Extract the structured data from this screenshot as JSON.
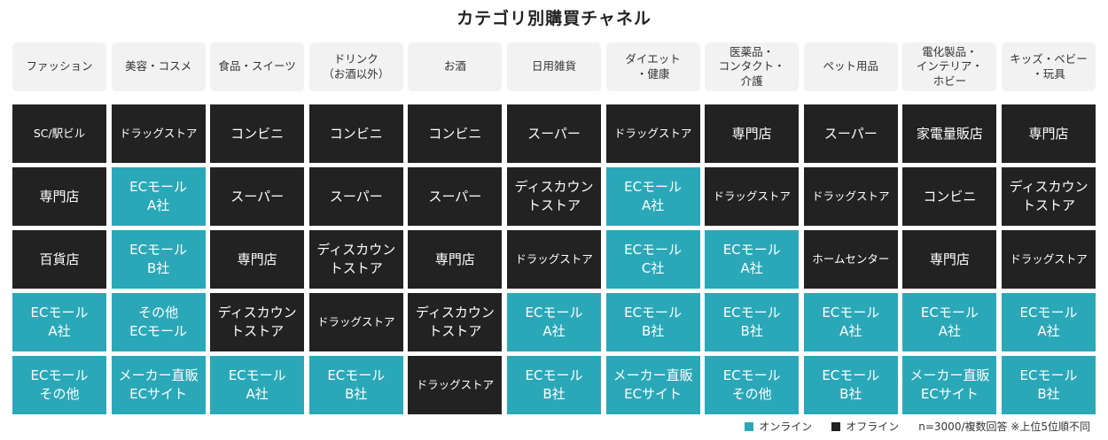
{
  "title": "カテゴリ別購買チャネル",
  "colors": {
    "online": "#2ba8b8",
    "offline": "#222222",
    "header_bg": "#f2f2f2"
  },
  "categories": [
    {
      "label": "ファッション",
      "cells": [
        {
          "text": "SC/駅ビル",
          "type": "offline"
        },
        {
          "text": "専門店",
          "type": "offline"
        },
        {
          "text": "百貨店",
          "type": "offline"
        },
        {
          "text": "ECモール\nA社",
          "type": "online"
        },
        {
          "text": "ECモール\nその他",
          "type": "online"
        }
      ]
    },
    {
      "label": "美容・コスメ",
      "cells": [
        {
          "text": "ドラッグストア",
          "type": "offline"
        },
        {
          "text": "ECモール\nA社",
          "type": "online"
        },
        {
          "text": "ECモール\nB社",
          "type": "online"
        },
        {
          "text": "その他\nECモール",
          "type": "online"
        },
        {
          "text": "メーカー直販\nECサイト",
          "type": "online"
        }
      ]
    },
    {
      "label": "食品・スイーツ",
      "cells": [
        {
          "text": "コンビニ",
          "type": "offline"
        },
        {
          "text": "スーパー",
          "type": "offline"
        },
        {
          "text": "専門店",
          "type": "offline"
        },
        {
          "text": "ディスカウン\nトストア",
          "type": "offline"
        },
        {
          "text": "ECモール\nA社",
          "type": "online"
        }
      ]
    },
    {
      "label": "ドリンク\n（お酒以外）",
      "cells": [
        {
          "text": "コンビニ",
          "type": "offline"
        },
        {
          "text": "スーパー",
          "type": "offline"
        },
        {
          "text": "ディスカウン\nトストア",
          "type": "offline"
        },
        {
          "text": "ドラッグストア",
          "type": "offline"
        },
        {
          "text": "ECモール\nB社",
          "type": "online"
        }
      ]
    },
    {
      "label": "お酒",
      "cells": [
        {
          "text": "コンビニ",
          "type": "offline"
        },
        {
          "text": "スーパー",
          "type": "offline"
        },
        {
          "text": "専門店",
          "type": "offline"
        },
        {
          "text": "ディスカウン\nトストア",
          "type": "offline"
        },
        {
          "text": "ドラッグストア",
          "type": "offline"
        }
      ]
    },
    {
      "label": "日用雑貨",
      "cells": [
        {
          "text": "スーパー",
          "type": "offline"
        },
        {
          "text": "ディスカウン\nトストア",
          "type": "offline"
        },
        {
          "text": "ドラッグストア",
          "type": "offline"
        },
        {
          "text": "ECモール\nA社",
          "type": "online"
        },
        {
          "text": "ECモール\nB社",
          "type": "online"
        }
      ]
    },
    {
      "label": "ダイエット\n・健康",
      "cells": [
        {
          "text": "ドラッグストア",
          "type": "offline"
        },
        {
          "text": "ECモール\nA社",
          "type": "online"
        },
        {
          "text": "ECモール\nC社",
          "type": "online"
        },
        {
          "text": "ECモール\nB社",
          "type": "online"
        },
        {
          "text": "メーカー直販\nECサイト",
          "type": "online"
        }
      ]
    },
    {
      "label": "医薬品・\nコンタクト・\n介護",
      "cells": [
        {
          "text": "専門店",
          "type": "offline"
        },
        {
          "text": "ドラッグストア",
          "type": "offline"
        },
        {
          "text": "ECモール\nA社",
          "type": "online"
        },
        {
          "text": "ECモール\nB社",
          "type": "online"
        },
        {
          "text": "ECモール\nその他",
          "type": "online"
        }
      ]
    },
    {
      "label": "ペット用品",
      "cells": [
        {
          "text": "スーパー",
          "type": "offline"
        },
        {
          "text": "ドラッグストア",
          "type": "offline"
        },
        {
          "text": "ホームセンター",
          "type": "offline"
        },
        {
          "text": "ECモール\nA社",
          "type": "online"
        },
        {
          "text": "ECモール\nB社",
          "type": "online"
        }
      ]
    },
    {
      "label": "電化製品・\nインテリア・\nホビー",
      "cells": [
        {
          "text": "家電量販店",
          "type": "offline"
        },
        {
          "text": "コンビニ",
          "type": "offline"
        },
        {
          "text": "専門店",
          "type": "offline"
        },
        {
          "text": "ECモール\nA社",
          "type": "online"
        },
        {
          "text": "メーカー直販\nECサイト",
          "type": "online"
        }
      ]
    },
    {
      "label": "キッズ・ベビー\n・玩具",
      "cells": [
        {
          "text": "専門店",
          "type": "offline"
        },
        {
          "text": "ディスカウン\nトストア",
          "type": "offline"
        },
        {
          "text": "ドラッグストア",
          "type": "offline"
        },
        {
          "text": "ECモール\nA社",
          "type": "online"
        },
        {
          "text": "ECモール\nB社",
          "type": "online"
        }
      ]
    }
  ],
  "legend": {
    "online_label": "オンライン",
    "offline_label": "オフライン",
    "note": "n=3000/複数回答 ※上位5位順不同"
  }
}
